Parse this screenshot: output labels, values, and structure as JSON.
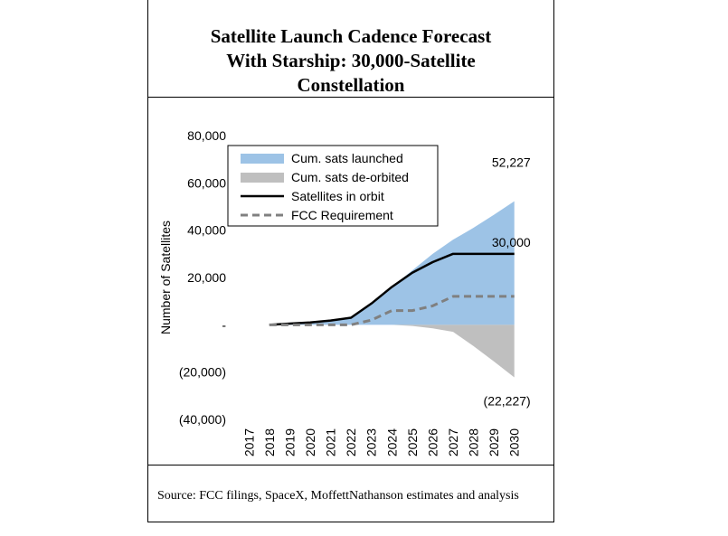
{
  "header": {
    "title_lines": [
      "Satellite Launch Cadence Forecast",
      "With Starship: 30,000-Satellite",
      "Constellation"
    ]
  },
  "source": "Source: FCC filings, SpaceX, MoffettNathanson estimates and analysis",
  "chart_data": {
    "type": "area",
    "title": "Satellite Launch Cadence Forecast With Starship: 30,000-Satellite Constellation",
    "xlabel": "",
    "ylabel": "Number of Satellites",
    "ylim": [
      -40000,
      80000
    ],
    "yticks": [
      -40000,
      -20000,
      0,
      20000,
      40000,
      60000,
      80000
    ],
    "ytick_labels": [
      "(40,000)",
      "(20,000)",
      "-",
      "20,000",
      "40,000",
      "60,000",
      "80,000"
    ],
    "categories": [
      "2017",
      "2018",
      "2019",
      "2020",
      "2021",
      "2022",
      "2023",
      "2024",
      "2025",
      "2026",
      "2027",
      "2028",
      "2029",
      "2030"
    ],
    "grid": false,
    "legend_position": "top-left",
    "series": [
      {
        "name": "Cum. sats launched",
        "style": "area",
        "color": "#9dc3e6",
        "values": [
          0,
          0,
          500,
          1000,
          1800,
          3000,
          9000,
          16000,
          23000,
          30000,
          36000,
          41000,
          46500,
          52227
        ]
      },
      {
        "name": "Cum. sats de-orbited",
        "style": "area",
        "color": "#bfbfbf",
        "values": [
          0,
          0,
          0,
          0,
          0,
          0,
          0,
          0,
          -500,
          -1500,
          -3000,
          -9000,
          -15500,
          -22227
        ]
      },
      {
        "name": "Satellites in orbit",
        "style": "line",
        "color": "#000000",
        "values": [
          0,
          0,
          500,
          1000,
          1800,
          3000,
          9000,
          16000,
          22000,
          26500,
          30000,
          30000,
          30000,
          30000
        ]
      },
      {
        "name": "FCC Requirement",
        "style": "dashed",
        "color": "#808080",
        "values": [
          0,
          0,
          0,
          0,
          0,
          0,
          2000,
          6000,
          6000,
          8000,
          12000,
          12000,
          12000,
          12000
        ]
      }
    ],
    "annotations": [
      {
        "text": "52,227",
        "color": "#000000"
      },
      {
        "text": "30,000",
        "color": "#000000"
      },
      {
        "text": "(22,227)",
        "color": "#c00000"
      }
    ]
  }
}
